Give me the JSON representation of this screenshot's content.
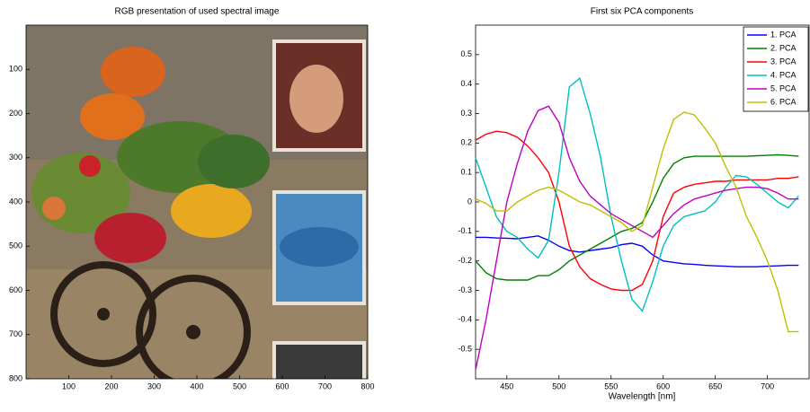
{
  "chart_data": [
    {
      "type": "image",
      "title": "RGB presentation of used spectral image",
      "xlim": [
        0,
        800
      ],
      "ylim": [
        800,
        0
      ],
      "xticks": [
        100,
        200,
        300,
        400,
        500,
        600,
        700,
        800
      ],
      "yticks": [
        100,
        200,
        300,
        400,
        500,
        600,
        700,
        800
      ]
    },
    {
      "type": "line",
      "title": "First six PCA components",
      "x_label": "Wavelength [nm]",
      "x": [
        420,
        430,
        440,
        450,
        460,
        470,
        480,
        490,
        500,
        510,
        520,
        530,
        540,
        550,
        560,
        570,
        580,
        590,
        600,
        610,
        620,
        630,
        640,
        650,
        660,
        670,
        680,
        690,
        700,
        710,
        720,
        730
      ],
      "xlim": [
        420,
        740
      ],
      "ylim": [
        -0.6,
        0.6
      ],
      "xticks": [
        450,
        500,
        550,
        600,
        650,
        700
      ],
      "yticks": [
        -0.5,
        -0.4,
        -0.3,
        -0.2,
        -0.1,
        0,
        0.1,
        0.2,
        0.3,
        0.4,
        0.5
      ],
      "legend": "upper right",
      "series": [
        {
          "name": "1. PCA",
          "color": "#0000ff",
          "values": [
            -0.12,
            -0.12,
            -0.122,
            -0.123,
            -0.125,
            -0.12,
            -0.115,
            -0.13,
            -0.15,
            -0.165,
            -0.17,
            -0.165,
            -0.16,
            -0.155,
            -0.145,
            -0.14,
            -0.15,
            -0.18,
            -0.2,
            -0.205,
            -0.21,
            -0.212,
            -0.215,
            -0.217,
            -0.218,
            -0.22,
            -0.22,
            -0.22,
            -0.218,
            -0.217,
            -0.215,
            -0.215
          ]
        },
        {
          "name": "2. PCA",
          "color": "#008000",
          "values": [
            -0.2,
            -0.24,
            -0.26,
            -0.265,
            -0.265,
            -0.265,
            -0.25,
            -0.25,
            -0.23,
            -0.2,
            -0.18,
            -0.16,
            -0.14,
            -0.12,
            -0.1,
            -0.09,
            -0.07,
            0.0,
            0.08,
            0.13,
            0.15,
            0.155,
            0.155,
            0.155,
            0.155,
            0.155,
            0.155,
            0.157,
            0.158,
            0.16,
            0.158,
            0.155
          ]
        },
        {
          "name": "3. PCA",
          "color": "#ff0000",
          "values": [
            0.21,
            0.23,
            0.24,
            0.235,
            0.22,
            0.19,
            0.15,
            0.1,
            0.0,
            -0.15,
            -0.22,
            -0.26,
            -0.28,
            -0.295,
            -0.3,
            -0.3,
            -0.28,
            -0.2,
            -0.05,
            0.03,
            0.05,
            0.06,
            0.065,
            0.07,
            0.07,
            0.075,
            0.075,
            0.075,
            0.075,
            0.08,
            0.08,
            0.085
          ]
        },
        {
          "name": "4. PCA",
          "color": "#00bfbf",
          "values": [
            0.15,
            0.05,
            -0.05,
            -0.1,
            -0.12,
            -0.16,
            -0.19,
            -0.13,
            0.1,
            0.39,
            0.42,
            0.3,
            0.15,
            -0.05,
            -0.2,
            -0.33,
            -0.37,
            -0.27,
            -0.15,
            -0.08,
            -0.05,
            -0.04,
            -0.03,
            0.0,
            0.05,
            0.09,
            0.085,
            0.06,
            0.03,
            0.0,
            -0.02,
            0.02
          ]
        },
        {
          "name": "5. PCA",
          "color": "#bf00bf",
          "values": [
            -0.57,
            -0.4,
            -0.2,
            0.0,
            0.13,
            0.24,
            0.31,
            0.325,
            0.27,
            0.15,
            0.07,
            0.02,
            -0.01,
            -0.04,
            -0.06,
            -0.08,
            -0.1,
            -0.12,
            -0.08,
            -0.04,
            -0.01,
            0.01,
            0.02,
            0.03,
            0.04,
            0.045,
            0.05,
            0.05,
            0.045,
            0.03,
            0.01,
            0.01
          ]
        },
        {
          "name": "6. PCA",
          "color": "#bfbf00",
          "values": [
            0.01,
            -0.005,
            -0.03,
            -0.03,
            0.0,
            0.02,
            0.04,
            0.05,
            0.04,
            0.02,
            0.0,
            -0.01,
            -0.03,
            -0.05,
            -0.07,
            -0.1,
            -0.08,
            0.05,
            0.18,
            0.28,
            0.305,
            0.295,
            0.25,
            0.2,
            0.12,
            0.05,
            -0.05,
            -0.12,
            -0.2,
            -0.3,
            -0.44,
            -0.44
          ]
        }
      ]
    }
  ]
}
